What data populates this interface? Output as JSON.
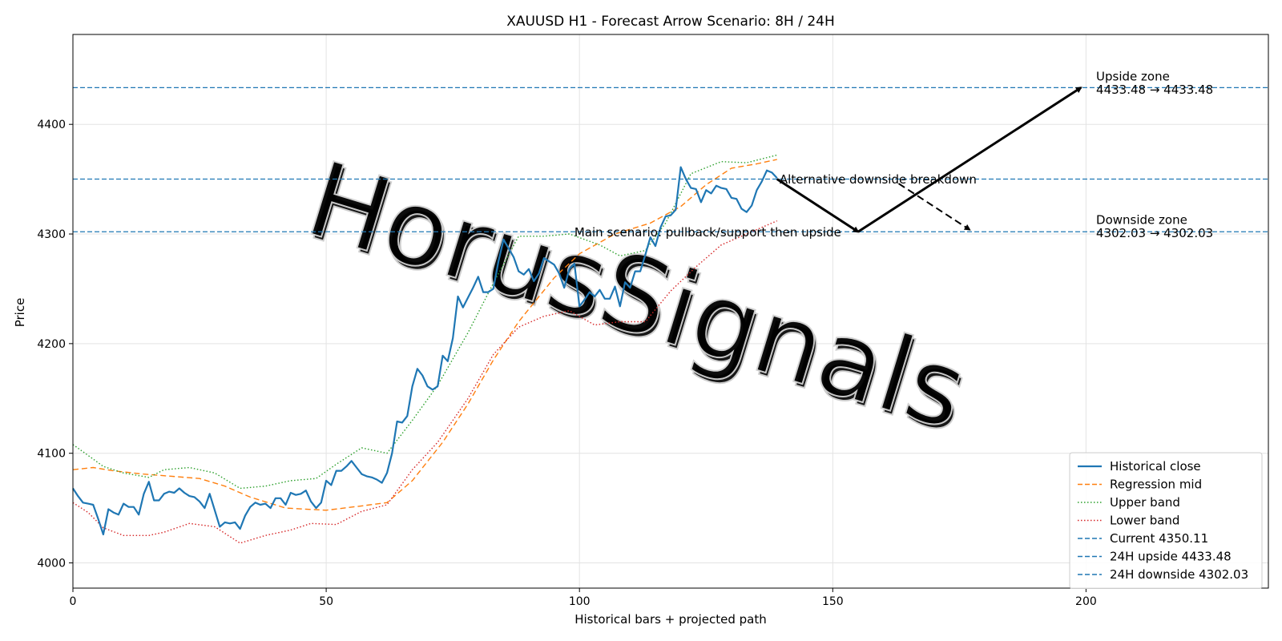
{
  "chart_data": {
    "type": "line",
    "title": "XAUUSD H1 - Forecast Arrow Scenario: 8H / 24H",
    "xlabel": "Historical bars + projected path",
    "ylabel": "Price",
    "xlim": [
      0,
      236
    ],
    "ylim": [
      3977,
      4482
    ],
    "xticks": [
      0,
      50,
      100,
      150,
      200
    ],
    "yticks": [
      4000,
      4100,
      4200,
      4300,
      4400
    ],
    "grid": true,
    "legend_position": "lower right",
    "watermark": "HorusSignals",
    "colors": {
      "close": "#1f77b4",
      "mid": "#ff7f0e",
      "upper": "#2ca02c",
      "lower": "#d62728",
      "levels": "#1f77b4",
      "arrows": "#000000"
    },
    "series": [
      {
        "name": "Historical close",
        "style": "solid",
        "x_start": 0,
        "values": [
          4068,
          4061,
          4055,
          4054,
          4053,
          4040,
          4026,
          4049,
          4046,
          4044,
          4054,
          4051,
          4051,
          4044,
          4063,
          4074,
          4057,
          4057,
          4063,
          4065,
          4064,
          4068,
          4064,
          4061,
          4060,
          4056,
          4050,
          4063,
          4048,
          4033,
          4037,
          4036,
          4037,
          4031,
          4043,
          4051,
          4055,
          4053,
          4054,
          4050,
          4059,
          4059,
          4053,
          4064,
          4062,
          4063,
          4066,
          4056,
          4050,
          4055,
          4075,
          4071,
          4084,
          4084,
          4088,
          4093,
          4087,
          4081,
          4079,
          4078,
          4076,
          4073,
          4082,
          4100,
          4129,
          4128,
          4134,
          4161,
          4177,
          4171,
          4161,
          4158,
          4161,
          4189,
          4184,
          4205,
          4243,
          4233,
          4242,
          4251,
          4261,
          4247,
          4247,
          4250,
          4275,
          4295,
          4287,
          4279,
          4266,
          4263,
          4268,
          4257,
          4264,
          4278,
          4275,
          4272,
          4264,
          4251,
          4268,
          4273,
          4234,
          4240,
          4247,
          4243,
          4249,
          4241,
          4241,
          4252,
          4234,
          4256,
          4251,
          4266,
          4266,
          4281,
          4297,
          4289,
          4306,
          4316,
          4317,
          4322,
          4361,
          4350,
          4342,
          4341,
          4329,
          4340,
          4337,
          4344,
          4342,
          4341,
          4333,
          4332,
          4323,
          4320,
          4326,
          4340,
          4348,
          4358,
          4356,
          4351
        ]
      },
      {
        "name": "Regression mid",
        "style": "dashed",
        "points": [
          [
            0,
            4085
          ],
          [
            4,
            4087
          ],
          [
            8,
            4084
          ],
          [
            14,
            4081
          ],
          [
            25,
            4077
          ],
          [
            30,
            4070
          ],
          [
            35,
            4060
          ],
          [
            42,
            4050
          ],
          [
            50,
            4048
          ],
          [
            57,
            4052
          ],
          [
            62,
            4055
          ],
          [
            67,
            4075
          ],
          [
            73,
            4110
          ],
          [
            78,
            4145
          ],
          [
            83,
            4185
          ],
          [
            88,
            4220
          ],
          [
            95,
            4260
          ],
          [
            100,
            4282
          ],
          [
            107,
            4300
          ],
          [
            114,
            4310
          ],
          [
            120,
            4325
          ],
          [
            125,
            4345
          ],
          [
            130,
            4360
          ],
          [
            135,
            4364
          ],
          [
            139,
            4368
          ]
        ]
      },
      {
        "name": "Upper band",
        "style": "dotted",
        "points": [
          [
            0,
            4108
          ],
          [
            3,
            4098
          ],
          [
            6,
            4088
          ],
          [
            10,
            4082
          ],
          [
            15,
            4078
          ],
          [
            18,
            4085
          ],
          [
            23,
            4087
          ],
          [
            28,
            4082
          ],
          [
            33,
            4068
          ],
          [
            38,
            4070
          ],
          [
            43,
            4075
          ],
          [
            48,
            4077
          ],
          [
            52,
            4090
          ],
          [
            57,
            4105
          ],
          [
            62,
            4100
          ],
          [
            67,
            4130
          ],
          [
            72,
            4162
          ],
          [
            78,
            4210
          ],
          [
            83,
            4255
          ],
          [
            88,
            4298
          ],
          [
            93,
            4298
          ],
          [
            98,
            4300
          ],
          [
            104,
            4290
          ],
          [
            108,
            4280
          ],
          [
            113,
            4285
          ],
          [
            117,
            4310
          ],
          [
            122,
            4355
          ],
          [
            128,
            4366
          ],
          [
            133,
            4365
          ],
          [
            139,
            4372
          ]
        ]
      },
      {
        "name": "Lower band",
        "style": "dotted",
        "points": [
          [
            0,
            4055
          ],
          [
            3,
            4046
          ],
          [
            6,
            4032
          ],
          [
            10,
            4025
          ],
          [
            15,
            4025
          ],
          [
            18,
            4028
          ],
          [
            23,
            4036
          ],
          [
            28,
            4033
          ],
          [
            33,
            4018
          ],
          [
            38,
            4025
          ],
          [
            43,
            4030
          ],
          [
            47,
            4036
          ],
          [
            52,
            4035
          ],
          [
            57,
            4047
          ],
          [
            62,
            4053
          ],
          [
            67,
            4085
          ],
          [
            72,
            4110
          ],
          [
            78,
            4150
          ],
          [
            83,
            4190
          ],
          [
            88,
            4215
          ],
          [
            93,
            4225
          ],
          [
            98,
            4230
          ],
          [
            103,
            4217
          ],
          [
            108,
            4220
          ],
          [
            113,
            4220
          ],
          [
            118,
            4248
          ],
          [
            123,
            4270
          ],
          [
            128,
            4290
          ],
          [
            133,
            4300
          ],
          [
            139,
            4312
          ]
        ]
      }
    ],
    "levels": [
      {
        "name": "Current 4350.11",
        "value": 4350.11
      },
      {
        "name": "24H upside 4433.48",
        "value": 4433.48
      },
      {
        "name": "24H downside 4302.03",
        "value": 4302.03
      }
    ],
    "arrows": [
      {
        "from": [
          139,
          4350.11
        ],
        "to": [
          155,
          4302.03
        ],
        "style": "solid"
      },
      {
        "from": [
          155,
          4302.03
        ],
        "to": [
          199,
          4433.48
        ],
        "style": "solid"
      },
      {
        "from": [
          163,
          4346
        ],
        "to": [
          177,
          4304
        ],
        "style": "dashed"
      }
    ],
    "annotations": [
      {
        "id": "main",
        "text": "Main scenario: pullback/support then upside",
        "x": 99,
        "y": 4298,
        "anchor": "start"
      },
      {
        "id": "alt",
        "text": "Alternative downside breakdown",
        "x": 139.5,
        "y": 4346,
        "anchor": "start"
      },
      {
        "id": "up1",
        "text": "Upside zone",
        "x": 202,
        "y": 4440,
        "anchor": "start"
      },
      {
        "id": "up2",
        "text": "4433.48 → 4433.48",
        "x": 202,
        "y": 4428,
        "anchor": "start"
      },
      {
        "id": "dn1",
        "text": "Downside zone",
        "x": 202,
        "y": 4309,
        "anchor": "start"
      },
      {
        "id": "dn2",
        "text": "4302.03 → 4302.03",
        "x": 202,
        "y": 4297,
        "anchor": "start"
      }
    ]
  }
}
